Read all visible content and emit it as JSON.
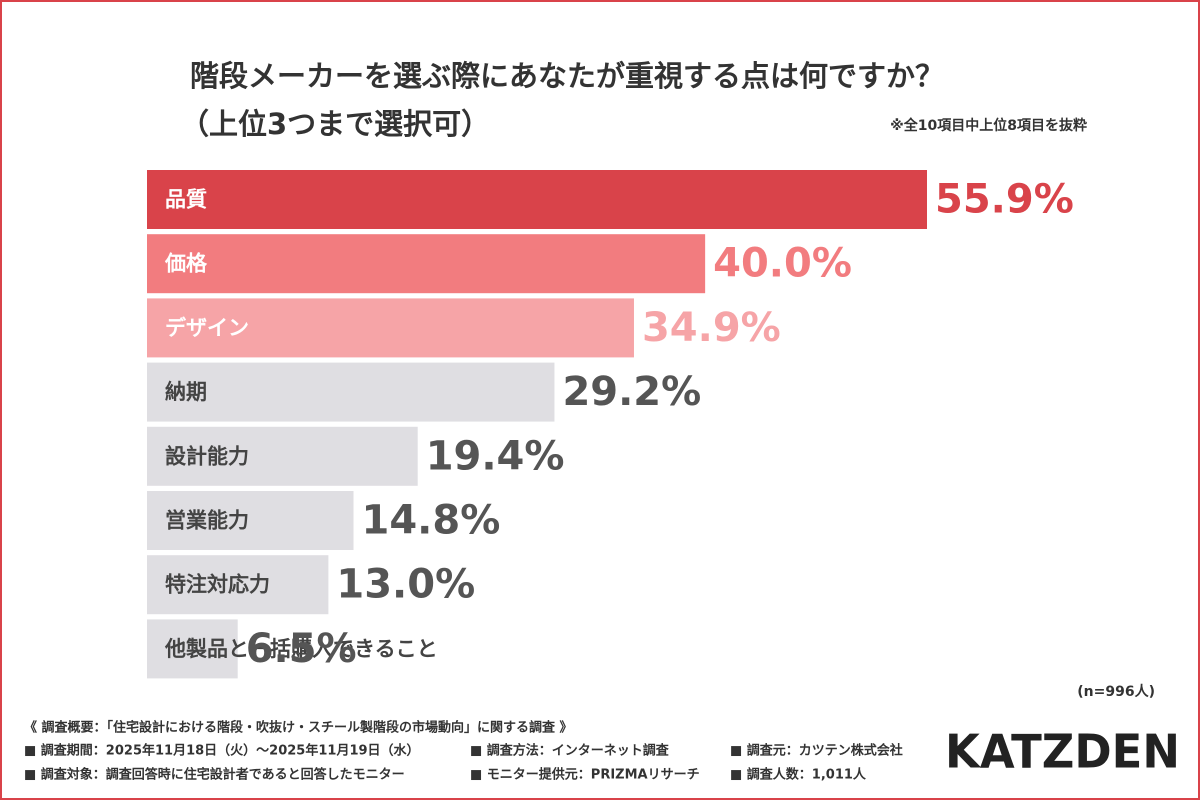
{
  "chart_data": {
    "type": "bar",
    "orientation": "horizontal",
    "title": "階段メーカーを選ぶ際にあなたが重視する点は何ですか？",
    "subtitle": "（上位3つまで選択可）",
    "note": "※全10項目中上位8項目を抜粋",
    "sample": "(n=996人)",
    "categories": [
      "品質",
      "価格",
      "デザイン",
      "納期",
      "設計能力",
      "営業能力",
      "特注対応力",
      "他製品と一括購入できること"
    ],
    "values": [
      55.9,
      40.0,
      34.9,
      29.2,
      19.4,
      14.8,
      13.0,
      6.5
    ],
    "value_labels": [
      "55.9%",
      "40.0%",
      "34.9%",
      "29.2%",
      "19.4%",
      "14.8%",
      "13.0%",
      "6.5%"
    ],
    "colors": [
      "#d9434a",
      "#f27c7f",
      "#f6a4a7",
      "#dfdee2",
      "#dfdee2",
      "#dfdee2",
      "#dfdee2",
      "#dfdee2"
    ],
    "label_colors": [
      "#ffffff",
      "#ffffff",
      "#ffffff",
      "#444444",
      "#444444",
      "#444444",
      "#444444",
      "#444444"
    ],
    "value_colors": [
      "#d9434a",
      "#f27c7f",
      "#f6a4a7",
      "#555555",
      "#555555",
      "#555555",
      "#555555",
      "#555555"
    ]
  },
  "footer": {
    "heading": "《 調査概要：「住宅設計における階段・吹抜け・スチール製階段の市場動向」に関する調査 》",
    "items": [
      [
        "■ 調査期間：2025年11月18日（火）〜2025年11月19日（水）",
        "■ 調査方法：インターネット調査",
        "■ 調査元：カツテン株式会社"
      ],
      [
        "■ 調査対象：調査回答時に住宅設計者であると回答したモニター",
        "■ モニター提供元：PRIZMAリサーチ",
        "■ 調査人数：1,011人"
      ]
    ],
    "logo": "KATZDEN"
  }
}
